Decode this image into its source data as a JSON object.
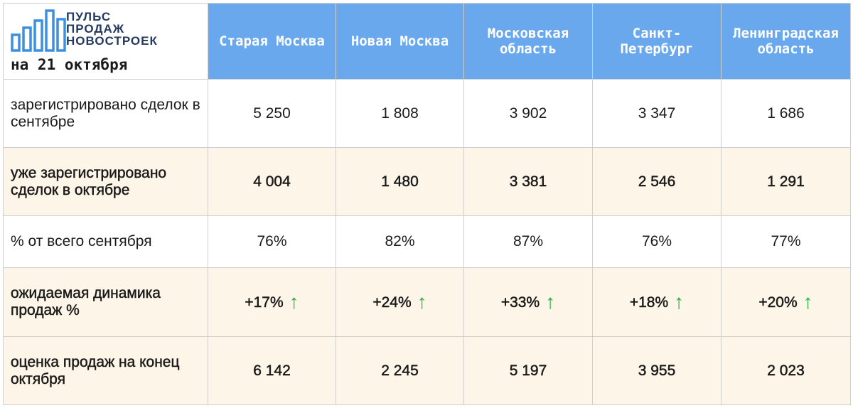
{
  "brand": {
    "logo_lines": [
      "ПУЛЬС",
      "ПРОДАЖ",
      "НОВОСТРОЕК"
    ],
    "date": "на 21 октября",
    "logo_color": "#3d8fe0",
    "text_color": "#233a5e"
  },
  "header": {
    "columns": [
      "Старая Москва",
      "Новая Москва",
      "Московская область",
      "Санкт-Петербург",
      "Ленинградская область"
    ],
    "color": "#6aa8ee"
  },
  "rows": [
    {
      "label": "зарегистрировано сделок в сентябре",
      "values": [
        "5 250",
        "1 808",
        "3 902",
        "3 347",
        "1 686"
      ]
    },
    {
      "label": "уже зарегистрировано сделок в октябре",
      "values": [
        "4 004",
        "1 480",
        "3 381",
        "2 546",
        "1 291"
      ]
    },
    {
      "label": "% от всего сентября",
      "values": [
        "76%",
        "82%",
        "87%",
        "76%",
        "77%"
      ]
    },
    {
      "label": "ожидаемая динамика продаж %",
      "values": [
        "+17%",
        "+24%",
        "+33%",
        "+18%",
        "+20%"
      ],
      "arrow": "↑",
      "arrow_icon": "up-arrow-icon",
      "arrow_color": "#22b03a"
    },
    {
      "label": "оценка продаж на конец октября",
      "values": [
        "6 142",
        "2 245",
        "5 197",
        "3 955",
        "2 023"
      ]
    }
  ]
}
